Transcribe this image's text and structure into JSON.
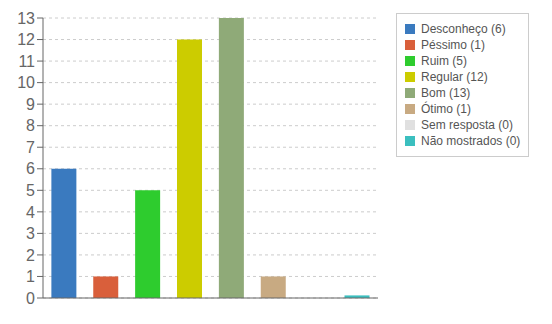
{
  "chart_data": {
    "type": "bar",
    "categories": [
      "Desconheço (6)",
      "Péssimo (1)",
      "Ruim (5)",
      "Regular (12)",
      "Bom (13)",
      "Ótimo (1)",
      "Sem resposta (0)",
      "Não mostrados (0)"
    ],
    "values": [
      6,
      1,
      5,
      12,
      13,
      1,
      0,
      0.12
    ],
    "colors": [
      "#3a7abf",
      "#d95f3b",
      "#2ecc2e",
      "#cccc00",
      "#8faa78",
      "#c8aa82",
      "#e0e0e0",
      "#3bbfbf"
    ],
    "ylim": [
      0,
      13
    ],
    "yticks": [
      0,
      1,
      2,
      3,
      4,
      5,
      6,
      7,
      8,
      9,
      10,
      11,
      12,
      13
    ],
    "grid": true,
    "legend": "right",
    "tick_labels": "y"
  }
}
